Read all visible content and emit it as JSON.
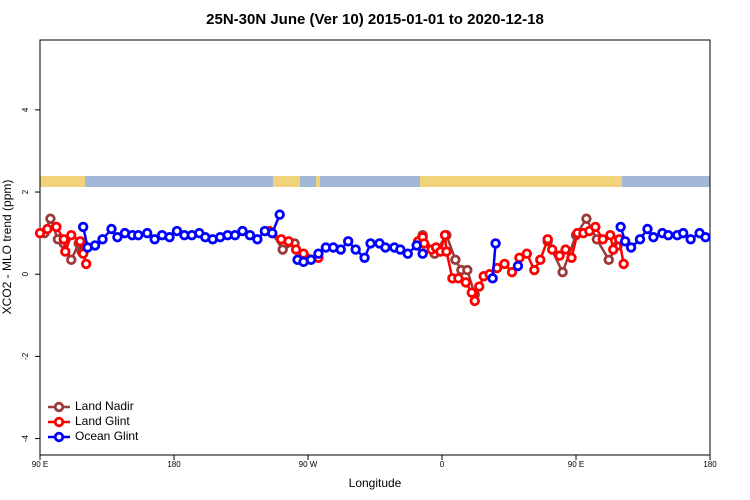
{
  "chart_data": {
    "type": "line",
    "title": "25N-30N June (Ver 10)   2015-01-01 to 2020-12-18",
    "x_label": "Longitude",
    "y_label": "XCO2 - MLO trend (ppm)",
    "xlim": [
      90,
      540
    ],
    "ylim": [
      -4.4,
      5.7
    ],
    "xticks": [
      {
        "value": 90,
        "label": "90 E"
      },
      {
        "value": 180,
        "label": "180"
      },
      {
        "value": 270,
        "label": "90 W"
      },
      {
        "value": 360,
        "label": "0"
      },
      {
        "value": 450,
        "label": "90 E"
      },
      {
        "value": 540,
        "label": "180"
      }
    ],
    "yticks": [
      -4,
      -2,
      0,
      2,
      4
    ],
    "legend": "bottom-left",
    "series": [
      {
        "name": "Land Nadir",
        "color": "#9b3a3a",
        "x": [
          93,
          97,
          102,
          106,
          111,
          116,
          118,
          null,
          246,
          253,
          261,
          null,
          347,
          355,
          363,
          369,
          373,
          377,
          382,
          null,
          431,
          441,
          450,
          457,
          464,
          472,
          478
        ],
        "values": [
          1.0,
          1.35,
          0.85,
          0.75,
          0.35,
          0.75,
          0.55,
          null,
          1.0,
          0.6,
          0.75,
          null,
          0.95,
          0.5,
          0.95,
          0.35,
          0.1,
          0.1,
          -0.5,
          null,
          0.8,
          0.05,
          0.95,
          1.35,
          0.85,
          0.35,
          0.7
        ]
      },
      {
        "name": "Land Glint",
        "color": "#ff0000",
        "x": [
          90,
          95,
          101,
          106,
          107,
          111,
          117,
          119,
          121,
          null,
          244,
          252,
          257,
          262,
          267,
          277,
          null,
          344,
          347,
          348,
          353,
          356,
          359,
          362,
          363,
          367,
          371,
          376,
          380,
          382,
          385,
          388,
          392,
          397,
          402,
          407,
          412,
          417,
          422,
          426,
          431,
          434,
          439,
          443,
          447,
          451,
          455,
          459,
          463,
          468,
          473,
          475,
          479,
          482
        ],
        "values": [
          1.0,
          1.1,
          1.15,
          0.85,
          0.55,
          0.95,
          0.8,
          0.5,
          0.25,
          null,
          1.05,
          0.85,
          0.8,
          0.6,
          0.5,
          0.4,
          null,
          0.8,
          0.9,
          0.75,
          0.6,
          0.65,
          0.55,
          0.95,
          0.55,
          -0.1,
          -0.1,
          -0.2,
          -0.45,
          -0.65,
          -0.3,
          -0.05,
          0.0,
          0.15,
          0.25,
          0.05,
          0.4,
          0.5,
          0.1,
          0.35,
          0.85,
          0.6,
          0.45,
          0.6,
          0.4,
          1.0,
          1.0,
          1.05,
          1.15,
          0.85,
          0.95,
          0.6,
          0.85,
          0.25
        ]
      },
      {
        "name": "Ocean Glint",
        "color": "#0000ff",
        "x": [
          119,
          122,
          127,
          132,
          138,
          142,
          147,
          152,
          156,
          162,
          167,
          172,
          177,
          182,
          187,
          192,
          197,
          201,
          206,
          211,
          216,
          221,
          226,
          231,
          236,
          241,
          246,
          251,
          null,
          263,
          267,
          272,
          277,
          282,
          287,
          292,
          297,
          302,
          308,
          312,
          318,
          322,
          328,
          332,
          337,
          343,
          347,
          null,
          394,
          396,
          null,
          411,
          null,
          480,
          483,
          487,
          493,
          498,
          502,
          508,
          512,
          518,
          522,
          527,
          533,
          537
        ],
        "values": [
          1.15,
          0.65,
          0.7,
          0.85,
          1.1,
          0.9,
          1.0,
          0.95,
          0.95,
          1.0,
          0.85,
          0.95,
          0.9,
          1.05,
          0.95,
          0.95,
          1.0,
          0.9,
          0.85,
          0.9,
          0.95,
          0.95,
          1.05,
          0.95,
          0.85,
          1.05,
          1.0,
          1.45,
          null,
          0.35,
          0.3,
          0.35,
          0.5,
          0.65,
          0.65,
          0.6,
          0.8,
          0.6,
          0.4,
          0.75,
          0.75,
          0.65,
          0.65,
          0.6,
          0.5,
          0.7,
          0.5,
          null,
          -0.1,
          0.75,
          null,
          0.2,
          null,
          1.15,
          0.8,
          0.65,
          0.85,
          1.1,
          0.9,
          1.0,
          0.95,
          0.95,
          1.0,
          0.85,
          1.0,
          0.9
        ]
      }
    ]
  }
}
